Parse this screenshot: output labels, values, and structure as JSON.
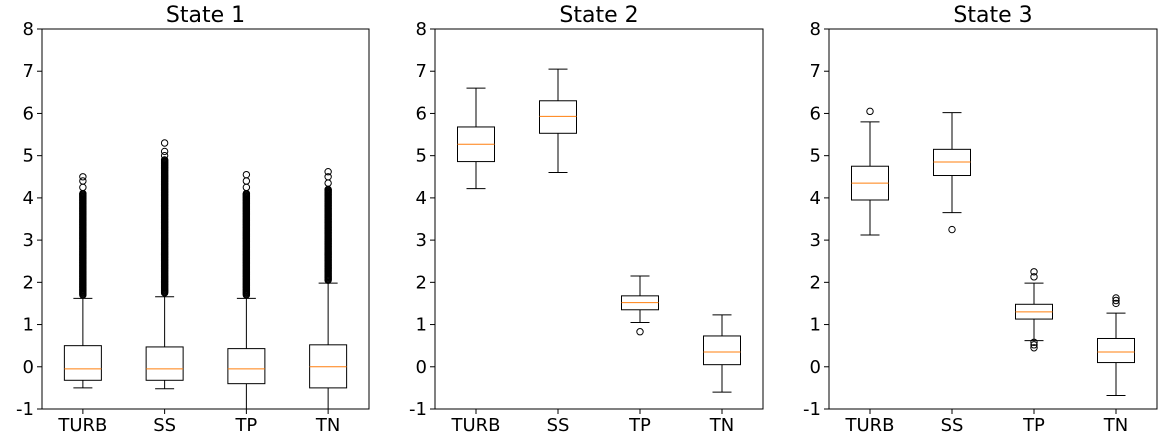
{
  "chart_data": [
    {
      "type": "box",
      "title": "State 1",
      "categories": [
        "TURB",
        "SS",
        "TP",
        "TN"
      ],
      "ylim": [
        -1,
        8
      ],
      "yticks": [
        -1,
        0,
        1,
        2,
        3,
        4,
        5,
        6,
        7,
        8
      ],
      "boxes": [
        {
          "category": "TURB",
          "whisker_low": -0.5,
          "q1": -0.32,
          "median": -0.05,
          "q3": 0.5,
          "whisker_high": 1.62,
          "outliers": [
            1.7,
            1.85,
            2.0,
            2.15,
            2.3,
            2.45,
            2.6,
            2.75,
            2.9,
            3.05,
            3.2,
            3.35,
            3.5,
            3.65,
            3.8,
            3.95,
            4.1,
            4.25,
            4.4,
            4.5
          ],
          "outlier_style": "dense"
        },
        {
          "category": "SS",
          "whisker_low": -0.52,
          "q1": -0.32,
          "median": -0.05,
          "q3": 0.47,
          "whisker_high": 1.66,
          "outliers": [
            1.75,
            1.9,
            2.05,
            2.2,
            2.35,
            2.5,
            2.65,
            2.8,
            2.95,
            3.1,
            3.25,
            3.4,
            3.55,
            3.7,
            3.85,
            4.0,
            4.15,
            4.3,
            4.45,
            4.6,
            4.75,
            4.9,
            5.0,
            5.1,
            5.3
          ],
          "outlier_style": "dense"
        },
        {
          "category": "TP",
          "whisker_low": -1.0,
          "q1": -0.4,
          "median": -0.05,
          "q3": 0.43,
          "whisker_high": 1.62,
          "outliers": [
            1.7,
            1.85,
            2.0,
            2.15,
            2.3,
            2.45,
            2.6,
            2.75,
            2.9,
            3.05,
            3.2,
            3.35,
            3.5,
            3.65,
            3.8,
            3.95,
            4.1,
            4.25,
            4.4,
            4.55
          ],
          "outlier_style": "dense"
        },
        {
          "category": "TN",
          "whisker_low": -1.0,
          "q1": -0.5,
          "median": 0.0,
          "q3": 0.52,
          "whisker_high": 1.98,
          "outliers": [
            2.05,
            2.2,
            2.35,
            2.5,
            2.65,
            2.8,
            2.95,
            3.1,
            3.25,
            3.4,
            3.55,
            3.7,
            3.85,
            4.0,
            4.2,
            4.35,
            4.5,
            4.62
          ],
          "outlier_style": "dense"
        }
      ]
    },
    {
      "type": "box",
      "title": "State 2",
      "categories": [
        "TURB",
        "SS",
        "TP",
        "TN"
      ],
      "ylim": [
        -1,
        8
      ],
      "yticks": [
        -1,
        0,
        1,
        2,
        3,
        4,
        5,
        6,
        7,
        8
      ],
      "boxes": [
        {
          "category": "TURB",
          "whisker_low": 4.22,
          "q1": 4.86,
          "median": 5.27,
          "q3": 5.68,
          "whisker_high": 6.6,
          "outliers": []
        },
        {
          "category": "SS",
          "whisker_low": 4.6,
          "q1": 5.53,
          "median": 5.93,
          "q3": 6.3,
          "whisker_high": 7.05,
          "outliers": []
        },
        {
          "category": "TP",
          "whisker_low": 1.05,
          "q1": 1.35,
          "median": 1.52,
          "q3": 1.68,
          "whisker_high": 2.15,
          "outliers": [
            0.83
          ]
        },
        {
          "category": "TN",
          "whisker_low": -0.6,
          "q1": 0.05,
          "median": 0.35,
          "q3": 0.73,
          "whisker_high": 1.23,
          "outliers": []
        }
      ]
    },
    {
      "type": "box",
      "title": "State 3",
      "categories": [
        "TURB",
        "SS",
        "TP",
        "TN"
      ],
      "ylim": [
        -1,
        8
      ],
      "yticks": [
        -1,
        0,
        1,
        2,
        3,
        4,
        5,
        6,
        7,
        8
      ],
      "boxes": [
        {
          "category": "TURB",
          "whisker_low": 3.12,
          "q1": 3.95,
          "median": 4.35,
          "q3": 4.75,
          "whisker_high": 5.8,
          "outliers": [
            6.05
          ]
        },
        {
          "category": "SS",
          "whisker_low": 3.65,
          "q1": 4.53,
          "median": 4.85,
          "q3": 5.15,
          "whisker_high": 6.02,
          "outliers": [
            3.25
          ]
        },
        {
          "category": "TP",
          "whisker_low": 0.62,
          "q1": 1.13,
          "median": 1.3,
          "q3": 1.48,
          "whisker_high": 1.98,
          "outliers": [
            0.45,
            0.52,
            0.58,
            2.13,
            2.25
          ]
        },
        {
          "category": "TN",
          "whisker_low": -0.68,
          "q1": 0.1,
          "median": 0.35,
          "q3": 0.67,
          "whisker_high": 1.27,
          "outliers": [
            1.5,
            1.57,
            1.63
          ]
        }
      ]
    }
  ],
  "colors": {
    "median": "#ff7f0e",
    "box_edge": "#000000",
    "background": "#ffffff"
  }
}
